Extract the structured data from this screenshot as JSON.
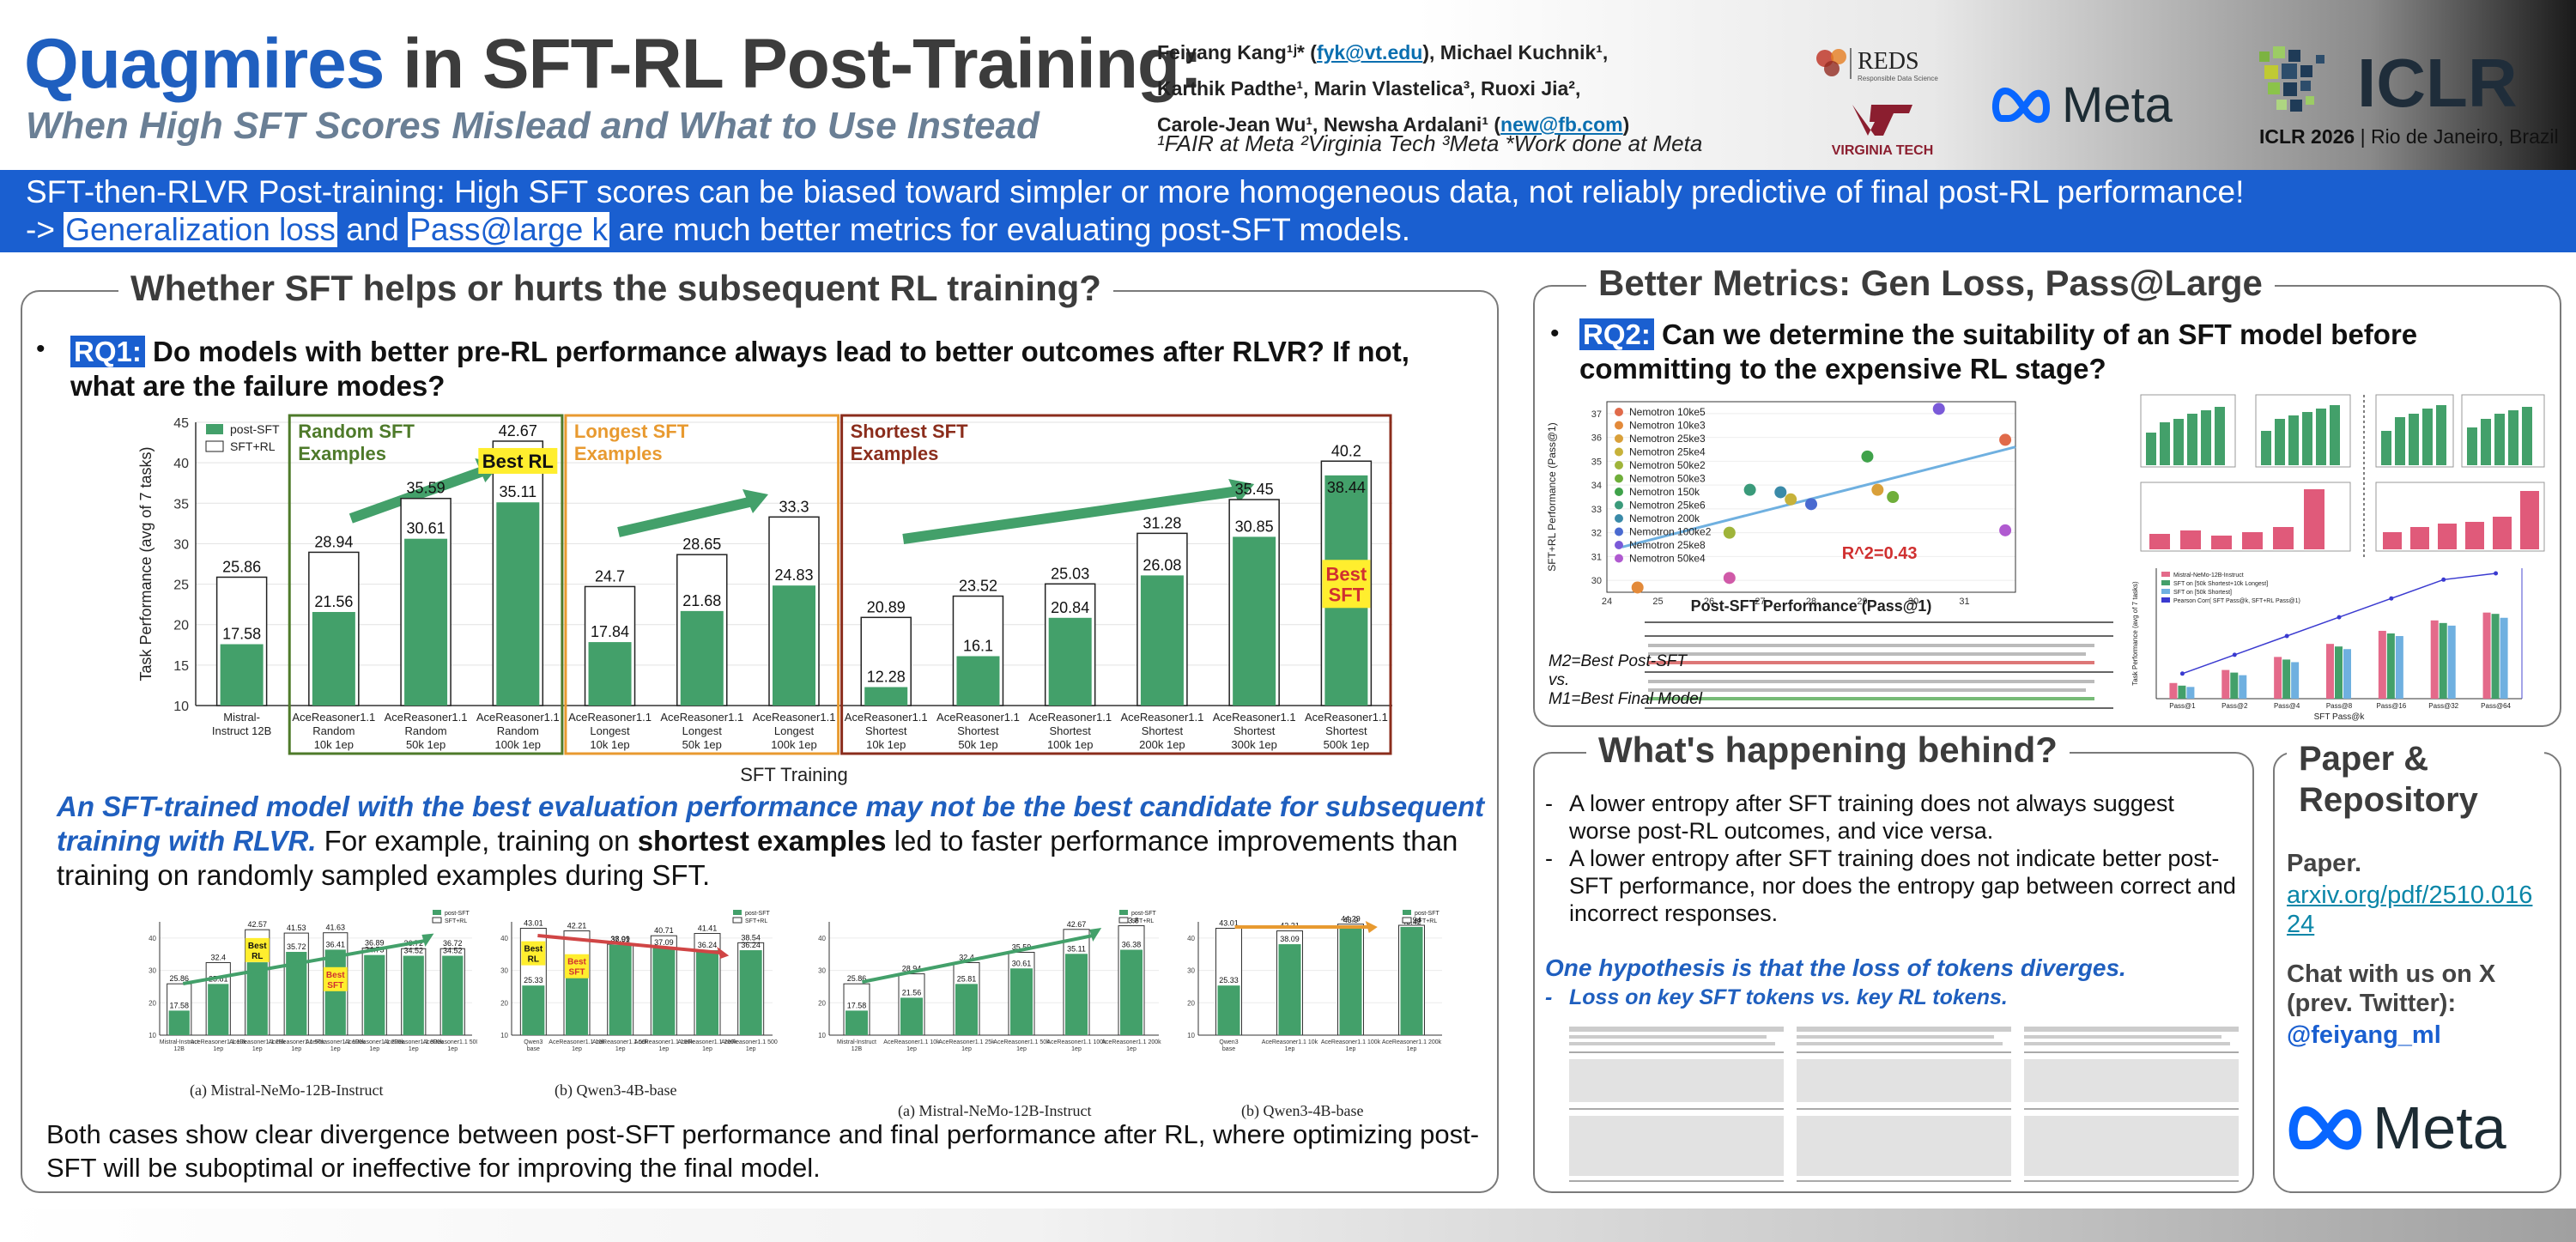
{
  "header": {
    "title_accent": "Quagmires",
    "title_rest": " in SFT-RL Post-Training:",
    "subtitle": "When High SFT Scores Mislead and What to Use Instead",
    "authors_line1_a": "Feiyang Kang¹ʲ* (",
    "authors_email1": "fyk@vt.edu",
    "authors_line1_b": "), Michael Kuchnik¹,",
    "authors_line2": "Karthik Padthe¹, Marin Vlastelica³, Ruoxi Jia²,",
    "authors_line3_a": "Carole-Jean Wu¹, Newsha Ardalani¹ (",
    "authors_email2": "new@fb.com",
    "authors_line3_b": ")",
    "affiliations": "¹FAIR at Meta ²Virginia Tech ³Meta *Work done at Meta",
    "logo_reds": "REDS",
    "logo_reds_sub": "Responsible Data Science",
    "logo_vt_text": "VIRGINIA TECH",
    "logo_meta": "Meta",
    "logo_iclr": "ICLR",
    "iclr_bold": "ICLR 2026",
    "iclr_rest": " | Rio de Janeiro, Brazil"
  },
  "banner": {
    "line1": "SFT-then-RLVR Post-training: High SFT scores can be biased toward simpler or more homogeneous data, not reliably predictive of final post-RL performance!",
    "line2_a": "-> ",
    "line2_h1": "Generalization loss",
    "line2_b": " and ",
    "line2_h2": "Pass@large k",
    "line2_c": " are much better metrics for evaluating post-SFT models."
  },
  "left_panel": {
    "title": "Whether SFT helps or hurts the subsequent RL training?",
    "rq_tag": "RQ1:",
    "rq_text": " Do models with better pre-RL performance always lead to better outcomes after RLVR? If not, what are the failure modes?",
    "finding_blue": "An SFT-trained model with the best evaluation performance may not be the best candidate for subsequent training with RLVR.",
    "finding_a": " For example, training on ",
    "finding_bold": "shortest examples",
    "finding_b": " led to faster performance improvements than training on randomly sampled examples during SFT.",
    "conclusion": "Both cases show clear divergence between post-SFT performance and final performance after RL, where optimizing post-SFT will be suboptimal or ineffective for improving the final model.",
    "caption_a1": "(a) Mistral-NeMo-12B-Instruct",
    "caption_b1": "(b) Qwen3-4B-base",
    "caption_a2": "(a) Mistral-NeMo-12B-Instruct",
    "caption_b2": "(b) Qwen3-4B-base"
  },
  "right_top": {
    "title": "Better Metrics: Gen Loss, Pass@Large",
    "rq_tag": "RQ2:",
    "rq_text": "  Can we determine the suitability of an SFT model before committing to the expensive RL stage?",
    "table_note_1": "M2=Best Post-SFT",
    "table_note_2": "vs.",
    "table_note_3": "M1=Best Final Model"
  },
  "behind": {
    "title": "What's happening behind?",
    "item1": "A lower entropy after SFT training does not always suggest worse post-RL outcomes, and vice versa.",
    "item2": "A lower entropy after SFT training does not indicate better post-SFT performance, nor does the entropy gap between correct and incorrect responses.",
    "hypothesis": "One hypothesis is that the loss of tokens diverges.",
    "sub_item": "Loss on key SFT tokens vs. key RL tokens."
  },
  "paper": {
    "title": "Paper & Repository",
    "paper_label": "Paper.",
    "paper_link": "arxiv.org/pdf/2510.01624",
    "chat_label": "Chat with us on X (prev. Twitter):",
    "handle": "@feiyang_ml",
    "meta": "Meta"
  },
  "chart_data": [
    {
      "id": "main",
      "type": "bar",
      "ylabel": "Task Performance (avg of 7 tasks)",
      "xlabel": "SFT Training",
      "ylim": [
        10,
        45
      ],
      "yticks": [
        10,
        15,
        20,
        25,
        30,
        35,
        40,
        45
      ],
      "legend": [
        "post-SFT",
        "SFT+RL"
      ],
      "categories": [
        "Mistral-Instruct 12B",
        "AceReasoner1.1 Random 10k 1ep",
        "AceReasoner1.1 Random 50k 1ep",
        "AceReasoner1.1 Random 100k 1ep",
        "AceReasoner1.1 Longest 10k 1ep",
        "AceReasoner1.1 Longest 50k 1ep",
        "AceReasoner1.1 Longest 100k 1ep",
        "AceReasoner1.1 Shortest 10k 1ep",
        "AceReasoner1.1 Shortest 50k 1ep",
        "AceReasoner1.1 Shortest 100k 1ep",
        "AceReasoner1.1 Shortest 200k 1ep",
        "AceReasoner1.1 Shortest 300k 1ep",
        "AceReasoner1.1 Shortest 500k 1ep"
      ],
      "series": [
        {
          "name": "post-SFT",
          "values": [
            17.58,
            21.56,
            30.61,
            35.11,
            17.84,
            21.68,
            24.83,
            12.28,
            16.1,
            20.84,
            26.08,
            30.85,
            38.44
          ]
        },
        {
          "name": "SFT+RL",
          "values": [
            25.86,
            28.94,
            35.59,
            42.67,
            24.7,
            28.65,
            33.3,
            20.89,
            23.52,
            25.03,
            31.28,
            35.45,
            40.2
          ]
        }
      ],
      "groups": [
        "Random SFT Examples",
        "Longest SFT Examples",
        "Shortest SFT Examples"
      ],
      "annotations": [
        "Best RL",
        "Best SFT"
      ]
    },
    {
      "id": "small1",
      "type": "bar",
      "categories": [
        "Mistral-Instruct 12B",
        "AceReasoner1.1 10k 1ep",
        "AceReasoner1.1 25k 1ep",
        "AceReasoner1.1 50k 1ep",
        "AceReasoner1.1 100k 1ep",
        "AceReasoner1.1 200k 1ep",
        "AceReasoner1.1 300k 1ep",
        "AceReasoner1.1 500k 1ep"
      ],
      "series": [
        {
          "name": "post-SFT",
          "values": [
            17.58,
            25.81,
            32.51,
            35.72,
            36.41,
            34.75,
            34.52,
            34.52
          ]
        },
        {
          "name": "SFT+RL",
          "values": [
            25.86,
            32.4,
            42.57,
            41.53,
            41.63,
            36.89,
            36.72,
            36.72
          ]
        }
      ],
      "ylim": [
        10,
        45
      ],
      "annotations": [
        "Best RL",
        "Best SFT"
      ]
    },
    {
      "id": "small2",
      "type": "bar",
      "categories": [
        "Qwen3 base",
        "AceReasoner1.1 10k 1ep",
        "AceReasoner1.1 50k 1ep",
        "AceReasoner1.1 100k 1ep",
        "AceReasoner1.1 200k 1ep",
        "AceReasoner1.1 500k 1ep"
      ],
      "series": [
        {
          "name": "post-SFT",
          "values": [
            25.33,
            29.5,
            37.91,
            37.09,
            36.24,
            36.24
          ]
        },
        {
          "name": "SFT+RL",
          "values": [
            43.01,
            42.21,
            38.09,
            40.71,
            41.41,
            38.54
          ]
        }
      ],
      "ylim": [
        10,
        45
      ],
      "annotations": [
        "Best RL",
        "Best SFT"
      ]
    },
    {
      "id": "small3",
      "type": "bar",
      "categories": [
        "Mistral-Instruct 12B",
        "AceReasoner1.1 10k 1ep",
        "AceReasoner1.1 25k 1ep",
        "AceReasoner1.1 50k 1ep",
        "AceReasoner1.1 100k 1ep",
        "AceReasoner1.1 200k 1ep"
      ],
      "series": [
        {
          "name": "post-SFT",
          "values": [
            17.58,
            21.56,
            25.81,
            30.61,
            35.11,
            36.38
          ]
        },
        {
          "name": "SFT+RL",
          "values": [
            25.86,
            28.94,
            32.4,
            35.59,
            42.67,
            43.8
          ]
        }
      ],
      "ylim": [
        10,
        45
      ]
    },
    {
      "id": "small4",
      "type": "bar",
      "categories": [
        "Qwen3 base",
        "AceReasoner1.1 10k 1ep",
        "AceReasoner1.1 100k 1ep",
        "AceReasoner1.1 200k 1ep"
      ],
      "series": [
        {
          "name": "post-SFT",
          "values": [
            25.33,
            38.09,
            43.9,
            43.42
          ]
        },
        {
          "name": "SFT+RL",
          "values": [
            43.01,
            42.21,
            44.29,
            43.94
          ]
        }
      ],
      "ylim": [
        10,
        45
      ]
    },
    {
      "id": "scatter",
      "type": "scatter",
      "xlabel": "Post-SFT Performance (Pass@1)",
      "ylabel": "SFT+RL Performance (Pass@1)",
      "xlim": [
        24,
        32
      ],
      "ylim": [
        29.5,
        37.5
      ],
      "annotation": "R^2=0.43",
      "points": [
        {
          "name": "Nemotron 10ke5",
          "x": 31.8,
          "y": 35.9
        },
        {
          "name": "Nemotron 10ke3",
          "x": 24.6,
          "y": 29.7
        },
        {
          "name": "Nemotron 25ke3",
          "x": 29.3,
          "y": 33.8
        },
        {
          "name": "Nemotron 25ke4",
          "x": 27.6,
          "y": 33.4
        },
        {
          "name": "Nemotron 50ke2",
          "x": 26.4,
          "y": 32.0
        },
        {
          "name": "Nemotron 50ke3",
          "x": 29.6,
          "y": 33.5
        },
        {
          "name": "Nemotron 150k",
          "x": 29.1,
          "y": 35.2
        },
        {
          "name": "Nemotron 25ke6",
          "x": 26.8,
          "y": 33.8
        },
        {
          "name": "Nemotron 200k",
          "x": 27.4,
          "y": 33.7
        },
        {
          "name": "Nemotron 100ke2",
          "x": 28.0,
          "y": 33.2
        },
        {
          "name": "Nemotron 25ke8",
          "x": 30.5,
          "y": 37.2
        },
        {
          "name": "Nemotron 50ke4",
          "x": 31.8,
          "y": 32.1
        },
        {
          "name": "",
          "x": 26.4,
          "y": 30.1
        }
      ]
    },
    {
      "id": "pass-k",
      "type": "bar",
      "xlabel": "SFT Pass@k",
      "ylabel": "Task Performance (avg of 7 tasks)",
      "categories": [
        "Pass@1",
        "Pass@2",
        "Pass@4",
        "Pass@8",
        "Pass@16",
        "Pass@32",
        "Pass@64"
      ],
      "legend": [
        "Mistral-NeMo-12B-Instruct",
        "SFT on [50k Shortest+10k Longest]",
        "SFT on [50k Shortest]",
        "Pearson Corr( SFT Pass@k, SFT+RL Pass@1)"
      ],
      "series": [
        {
          "name": "Mistral-NeMo-12B-Instruct",
          "values": [
            0.12,
            0.22,
            0.32,
            0.42,
            0.52,
            0.6,
            0.66
          ]
        },
        {
          "name": "SFT on [50k Shortest+10k Longest]",
          "values": [
            0.1,
            0.2,
            0.3,
            0.4,
            0.5,
            0.58,
            0.65
          ]
        },
        {
          "name": "SFT on [50k Shortest]",
          "values": [
            0.09,
            0.18,
            0.28,
            0.38,
            0.48,
            0.56,
            0.62
          ]
        }
      ],
      "line": [
        0.2,
        0.35,
        0.5,
        0.65,
        0.8,
        0.95,
        1.0
      ]
    }
  ]
}
